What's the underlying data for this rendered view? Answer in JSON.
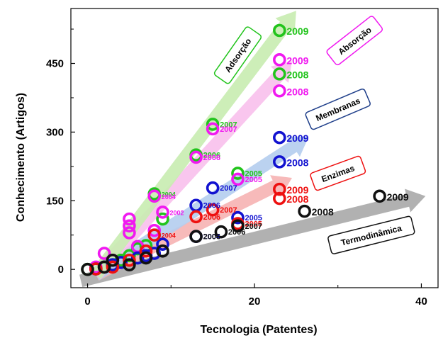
{
  "chart_data": {
    "type": "scatter",
    "title": "",
    "xlabel": "Tecnologia (Patentes)",
    "ylabel": "Conhecimento (Artigos)",
    "xlim": [
      -2,
      42
    ],
    "ylim": [
      -40,
      570
    ],
    "xticks": [
      0,
      20,
      40
    ],
    "yticks": [
      0,
      150,
      300,
      450
    ],
    "grid": false,
    "series": [
      {
        "name": "Adsorção",
        "color": "#22c41c",
        "arrow_color": "#c8ecb0",
        "points": [
          {
            "x": 0,
            "y": 0
          },
          {
            "x": 1,
            "y": 2
          },
          {
            "x": 2,
            "y": 5
          },
          {
            "x": 3,
            "y": 10
          },
          {
            "x": 4,
            "y": 20
          },
          {
            "x": 5,
            "y": 30
          },
          {
            "x": 6,
            "y": 45
          },
          {
            "x": 7,
            "y": 52
          },
          {
            "x": 8,
            "y": 165,
            "label": "2004"
          },
          {
            "x": 9,
            "y": 110
          },
          {
            "x": 13,
            "y": 250,
            "label": "2006"
          },
          {
            "x": 15,
            "y": 317,
            "label": "2007"
          },
          {
            "x": 18,
            "y": 210,
            "label": "2005"
          },
          {
            "x": 23,
            "y": 427,
            "label": "2008"
          },
          {
            "x": 23,
            "y": 522,
            "label": "2009"
          }
        ]
      },
      {
        "name": "Absorção",
        "color": "#f019f0",
        "arrow_color": "#f8c0ec",
        "points": [
          {
            "x": 1,
            "y": 5
          },
          {
            "x": 2,
            "y": 35
          },
          {
            "x": 3,
            "y": 20
          },
          {
            "x": 5,
            "y": 110
          },
          {
            "x": 5,
            "y": 95
          },
          {
            "x": 5,
            "y": 80
          },
          {
            "x": 6,
            "y": 50
          },
          {
            "x": 8,
            "y": 160,
            "label": "2004"
          },
          {
            "x": 8,
            "y": 85
          },
          {
            "x": 9,
            "y": 125,
            "label": "2002"
          },
          {
            "x": 13,
            "y": 245,
            "label": "2006"
          },
          {
            "x": 15,
            "y": 307,
            "label": "2007"
          },
          {
            "x": 18,
            "y": 197,
            "label": "2005"
          },
          {
            "x": 23,
            "y": 390,
            "label": "2008"
          },
          {
            "x": 23,
            "y": 458,
            "label": "2009"
          }
        ]
      },
      {
        "name": "Membranas",
        "color": "#1212d0",
        "arrow_color": "#b4cdee",
        "points": [
          {
            "x": 1,
            "y": 1
          },
          {
            "x": 2,
            "y": 5
          },
          {
            "x": 3,
            "y": 10
          },
          {
            "x": 4,
            "y": 15
          },
          {
            "x": 6,
            "y": 25
          },
          {
            "x": 7,
            "y": 30
          },
          {
            "x": 8,
            "y": 35
          },
          {
            "x": 9,
            "y": 55
          },
          {
            "x": 13,
            "y": 72,
            "label": "2004"
          },
          {
            "x": 13,
            "y": 140,
            "label": "2006"
          },
          {
            "x": 15,
            "y": 178,
            "label": "2007"
          },
          {
            "x": 18,
            "y": 113,
            "label": "2005"
          },
          {
            "x": 23,
            "y": 235,
            "label": "2008"
          },
          {
            "x": 23,
            "y": 288,
            "label": "2009"
          }
        ]
      },
      {
        "name": "Enzimas",
        "color": "#ee1010",
        "arrow_color": "#f6b2b2",
        "points": [
          {
            "x": 1,
            "y": 1
          },
          {
            "x": 3,
            "y": 5
          },
          {
            "x": 5,
            "y": 20
          },
          {
            "x": 7,
            "y": 40
          },
          {
            "x": 8,
            "y": 75,
            "label": "2004"
          },
          {
            "x": 13,
            "y": 115,
            "label": "2006"
          },
          {
            "x": 15,
            "y": 130,
            "label": "2007"
          },
          {
            "x": 18,
            "y": 100,
            "label": "2005"
          },
          {
            "x": 23,
            "y": 155,
            "label": "2008"
          },
          {
            "x": 23,
            "y": 175,
            "label": "2009"
          }
        ]
      },
      {
        "name": "Termodinâmica",
        "color": "#111111",
        "arrow_color": "#a8a8a8",
        "points": [
          {
            "x": 0,
            "y": 0
          },
          {
            "x": 2,
            "y": 5
          },
          {
            "x": 3,
            "y": 20
          },
          {
            "x": 5,
            "y": 10
          },
          {
            "x": 7,
            "y": 25
          },
          {
            "x": 9,
            "y": 40
          },
          {
            "x": 13,
            "y": 72,
            "label": "2006"
          },
          {
            "x": 16,
            "y": 82,
            "label": "2006"
          },
          {
            "x": 18,
            "y": 95,
            "label": "2007"
          },
          {
            "x": 26,
            "y": 127,
            "label": "2008"
          },
          {
            "x": 35,
            "y": 160,
            "label": "2009"
          }
        ]
      }
    ],
    "trend_arrows": [
      {
        "series": "Termodinâmica",
        "from": [
          -0.8,
          -25
        ],
        "to": [
          40.5,
          160
        ]
      },
      {
        "series": "Enzimas",
        "from": [
          1,
          -12
        ],
        "to": [
          24.5,
          200
        ]
      },
      {
        "series": "Membranas",
        "from": [
          1,
          -12
        ],
        "to": [
          26.5,
          290
        ]
      },
      {
        "series": "Absorção",
        "from": [
          1,
          -12
        ],
        "to": [
          24.5,
          455
        ]
      },
      {
        "series": "Adsorção",
        "from": [
          1,
          -12
        ],
        "to": [
          25,
          565
        ]
      }
    ],
    "annotations": [
      {
        "text": "Adsorção",
        "series": "Adsorção",
        "border": "#22c41c",
        "at": [
          18,
          468
        ],
        "angle": -55
      },
      {
        "text": "Absorção",
        "series": "Absorção",
        "border": "#f019f0",
        "at": [
          32,
          500
        ],
        "angle": -38
      },
      {
        "text": "Membranas",
        "series": "Membranas",
        "border": "#1f3f8a",
        "at": [
          30,
          350
        ],
        "angle": -23
      },
      {
        "text": "Enzimas",
        "series": "Enzimas",
        "border": "#ee1010",
        "at": [
          30,
          210
        ],
        "angle": -20
      },
      {
        "text": "Termodinâmica",
        "series": "Termodinâmica",
        "border": "#111111",
        "at": [
          34,
          75
        ],
        "angle": -14
      }
    ]
  }
}
